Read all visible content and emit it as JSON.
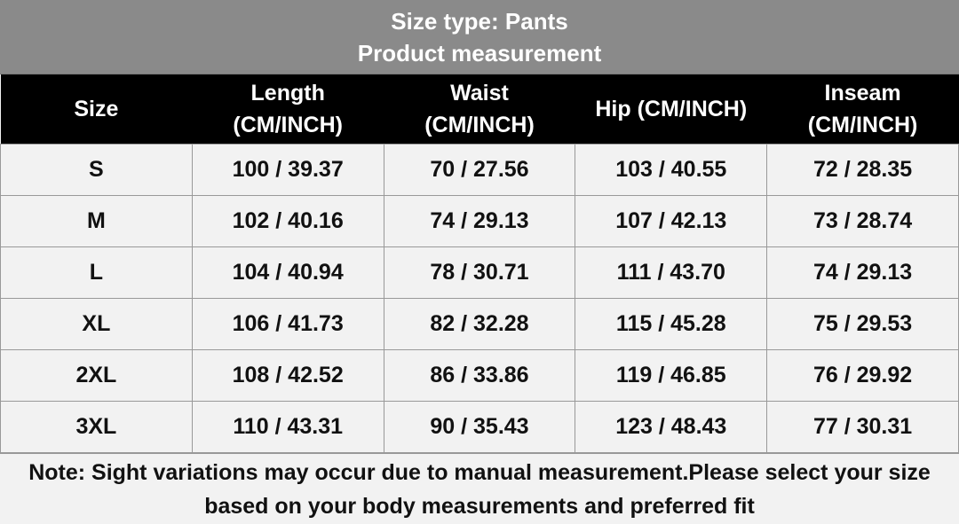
{
  "header": {
    "title": "Size type: Pants",
    "subtitle": "Product measurement"
  },
  "table": {
    "columns": [
      "Size",
      "Length\n(CM/INCH)",
      "Waist\n(CM/INCH)",
      "Hip (CM/INCH)",
      "Inseam\n(CM/INCH)"
    ],
    "rows": [
      [
        "S",
        "100 / 39.37",
        "70 / 27.56",
        "103 / 40.55",
        "72 / 28.35"
      ],
      [
        "M",
        "102 / 40.16",
        "74 / 29.13",
        "107 / 42.13",
        "73 / 28.74"
      ],
      [
        "L",
        "104 / 40.94",
        "78 / 30.71",
        "111 / 43.70",
        "74 / 29.13"
      ],
      [
        "XL",
        "106 / 41.73",
        "82 / 32.28",
        "115 / 45.28",
        "75 / 29.53"
      ],
      [
        "2XL",
        "108 / 42.52",
        "86 / 33.86",
        "119 / 46.85",
        "76 / 29.92"
      ],
      [
        "3XL",
        "110 / 43.31",
        "90 / 35.43",
        "123 / 48.43",
        "77 / 30.31"
      ]
    ]
  },
  "note": "Note: Sight variations may occur due to manual measurement.Please select your size based on your body measurements and preferred fit"
}
